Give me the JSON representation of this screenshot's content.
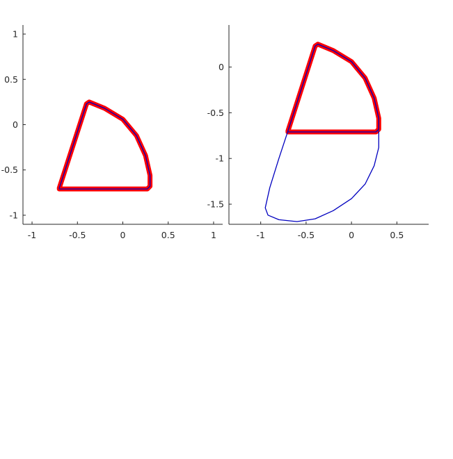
{
  "colors": {
    "background": "#ffffff",
    "axis": "#262626",
    "thick_curve": "#ff0000",
    "thin_curve": "#0000bf"
  },
  "chart_data": [
    {
      "type": "line",
      "title": "",
      "xlabel": "",
      "ylabel": "",
      "grid": false,
      "legend": "none",
      "xlim": [
        -1.1,
        1.1
      ],
      "ylim": [
        -1.1,
        1.1
      ],
      "xticks": [
        -1,
        -0.5,
        0,
        0.5,
        1
      ],
      "xtick_labels": [
        "-1",
        "-0.5",
        "0",
        "0.5",
        "1"
      ],
      "yticks": [
        -1,
        -0.5,
        0,
        0.5,
        1
      ],
      "ytick_labels": [
        "-1",
        "-0.5",
        "0",
        "0.5",
        "1"
      ],
      "series": [
        {
          "style": "thick",
          "color": "#ff0000",
          "x": [
            -0.7,
            -0.4,
            -0.37,
            -0.2,
            0.0,
            0.15,
            0.25,
            0.3,
            0.3,
            0.27,
            -0.7
          ],
          "y": [
            -0.7,
            0.23,
            0.25,
            0.18,
            0.06,
            -0.12,
            -0.34,
            -0.56,
            -0.68,
            -0.71,
            -0.71
          ]
        },
        {
          "style": "thin",
          "color": "#0000bf",
          "x": [
            -0.7,
            -0.4,
            -0.37,
            -0.2,
            0.0,
            0.15,
            0.25,
            0.3,
            0.3,
            0.27,
            -0.7
          ],
          "y": [
            -0.7,
            0.23,
            0.25,
            0.18,
            0.06,
            -0.12,
            -0.34,
            -0.56,
            -0.68,
            -0.71,
            -0.71
          ]
        }
      ]
    },
    {
      "type": "line",
      "title": "",
      "xlabel": "",
      "ylabel": "",
      "grid": false,
      "legend": "none",
      "xlim": [
        -1.35,
        0.85
      ],
      "ylim": [
        -1.72,
        0.46
      ],
      "xticks": [
        -1,
        -0.5,
        0,
        0.5
      ],
      "xtick_labels": [
        "-1",
        "-0.5",
        "0",
        "0.5"
      ],
      "yticks": [
        -1.5,
        -1,
        -0.5,
        0
      ],
      "ytick_labels": [
        "-1.5",
        "-1",
        "-0.5",
        "0"
      ],
      "series": [
        {
          "style": "thick",
          "color": "#ff0000",
          "x": [
            -0.7,
            -0.4,
            -0.37,
            -0.2,
            0.0,
            0.15,
            0.25,
            0.3,
            0.3,
            0.27,
            -0.7
          ],
          "y": [
            -0.7,
            0.23,
            0.25,
            0.18,
            0.06,
            -0.12,
            -0.34,
            -0.56,
            -0.68,
            -0.71,
            -0.71
          ]
        },
        {
          "style": "thin",
          "color": "#0000bf",
          "x": [
            -0.7,
            -0.4,
            -0.37,
            -0.2,
            0.0,
            0.15,
            0.25,
            0.3,
            0.3,
            0.27,
            -0.7
          ],
          "y": [
            -0.7,
            0.23,
            0.25,
            0.18,
            0.06,
            -0.12,
            -0.34,
            -0.56,
            -0.68,
            -0.71,
            -0.71
          ]
        },
        {
          "style": "thin",
          "color": "#0000bf",
          "x": [
            -0.7,
            -0.8,
            -0.9,
            -0.95,
            -0.92,
            -0.8,
            -0.6,
            -0.4,
            -0.2,
            0.0,
            0.15,
            0.25,
            0.3,
            0.3
          ],
          "y": [
            -0.7,
            -1.0,
            -1.32,
            -1.54,
            -1.62,
            -1.67,
            -1.69,
            -1.66,
            -1.57,
            -1.44,
            -1.28,
            -1.08,
            -0.88,
            -0.7
          ]
        }
      ]
    }
  ]
}
